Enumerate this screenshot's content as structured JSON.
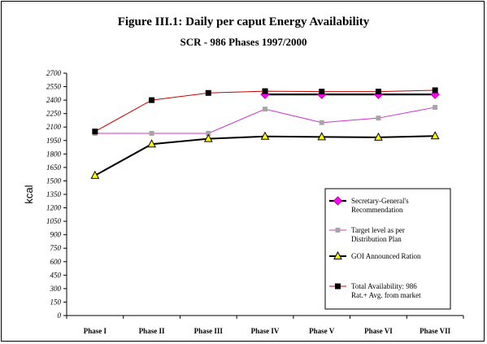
{
  "chart_data": {
    "type": "line",
    "title": "Figure III.1:  Daily per caput Energy Availability",
    "subtitle": "SCR - 986 Phases 1997/2000",
    "ylabel": "kcal",
    "xlabel": "",
    "ylim": [
      0,
      2700
    ],
    "y_ticks": [
      0,
      150,
      300,
      450,
      600,
      750,
      900,
      1050,
      1200,
      1350,
      1500,
      1650,
      1800,
      1950,
      2100,
      2250,
      2400,
      2550,
      2700
    ],
    "categories": [
      "Phase I",
      "Phase II",
      "Phase III",
      "Phase IV",
      "Phase V",
      "Phase VI",
      "Phase VII"
    ],
    "legend_position": "right",
    "series": [
      {
        "name": "Secretary-General's Recommendation",
        "color": "#cc0099",
        "marker": "diamond",
        "values": [
          null,
          null,
          null,
          2463,
          2463,
          2463,
          2463
        ]
      },
      {
        "name": "Target level as per Distribution Plan",
        "color": "#cc33cc",
        "marker": "square-grey",
        "values": [
          2030,
          2030,
          2030,
          2300,
          2150,
          2200,
          2320
        ]
      },
      {
        "name": "GOI Announced Ration",
        "color": "#000000",
        "marker": "triangle-yellow",
        "values": [
          1560,
          1910,
          1970,
          1995,
          1990,
          1985,
          2000
        ]
      },
      {
        "name": "Total Availability: 986 Rat.+ Avg. from market",
        "color": "#cc0000",
        "marker": "square-black",
        "values": [
          2050,
          2400,
          2480,
          2500,
          2495,
          2495,
          2510
        ]
      }
    ]
  }
}
